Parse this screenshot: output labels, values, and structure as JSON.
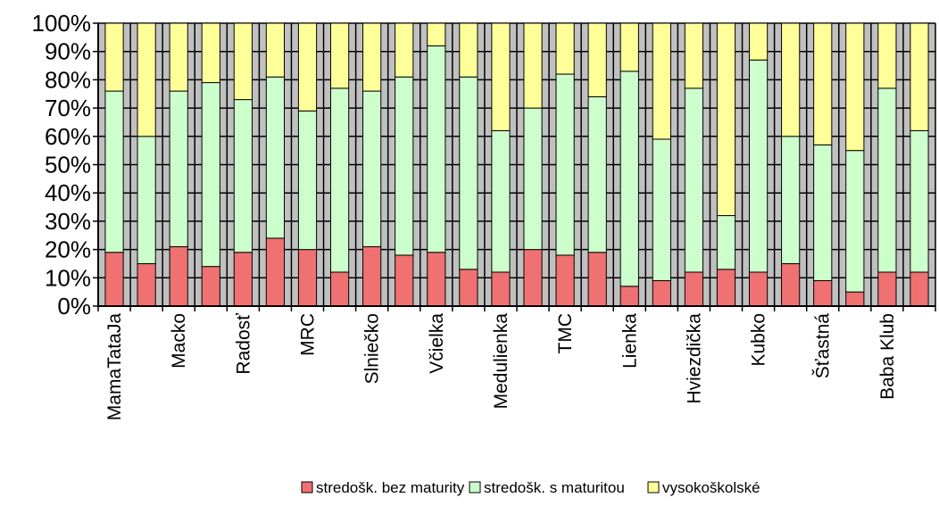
{
  "chart_data": {
    "type": "bar",
    "stacked": true,
    "percent": true,
    "categories": [
      "MamaTataJa",
      "",
      "Macko",
      "",
      "Radosť",
      "",
      "MRC",
      "",
      "Slniečko",
      "",
      "Včielka",
      "",
      "Medulienka",
      "",
      "TMC",
      "",
      "Lienka",
      "",
      "Hviezdička",
      "",
      "Kubko",
      "",
      "Šťastná",
      "",
      "Baba Klub",
      ""
    ],
    "series": [
      {
        "name": "stredošk. bez maturity",
        "color": "#f07171",
        "values": [
          19,
          15,
          21,
          14,
          19,
          24,
          20,
          12,
          21,
          18,
          19,
          13,
          12,
          20,
          18,
          19,
          7,
          9,
          12,
          13,
          12,
          15,
          9,
          5,
          12,
          12
        ]
      },
      {
        "name": "stredošk. s maturitou",
        "color": "#ccffcc",
        "values": [
          57,
          45,
          55,
          65,
          54,
          57,
          49,
          65,
          55,
          63,
          73,
          68,
          50,
          50,
          64,
          55,
          76,
          50,
          65,
          19,
          75,
          45,
          48,
          50,
          65,
          50
        ]
      },
      {
        "name": "vysokoškolské",
        "color": "#ffff99",
        "values": [
          24,
          40,
          24,
          21,
          27,
          19,
          31,
          23,
          24,
          19,
          8,
          19,
          38,
          30,
          18,
          26,
          17,
          41,
          23,
          68,
          13,
          40,
          43,
          45,
          23,
          38
        ]
      }
    ],
    "yticks": [
      "0%",
      "10%",
      "20%",
      "30%",
      "40%",
      "50%",
      "60%",
      "70%",
      "80%",
      "90%",
      "100%"
    ],
    "ylim": [
      0,
      100
    ],
    "grid": true,
    "plot_background": "#c0c0c0",
    "legend_position": "bottom"
  }
}
